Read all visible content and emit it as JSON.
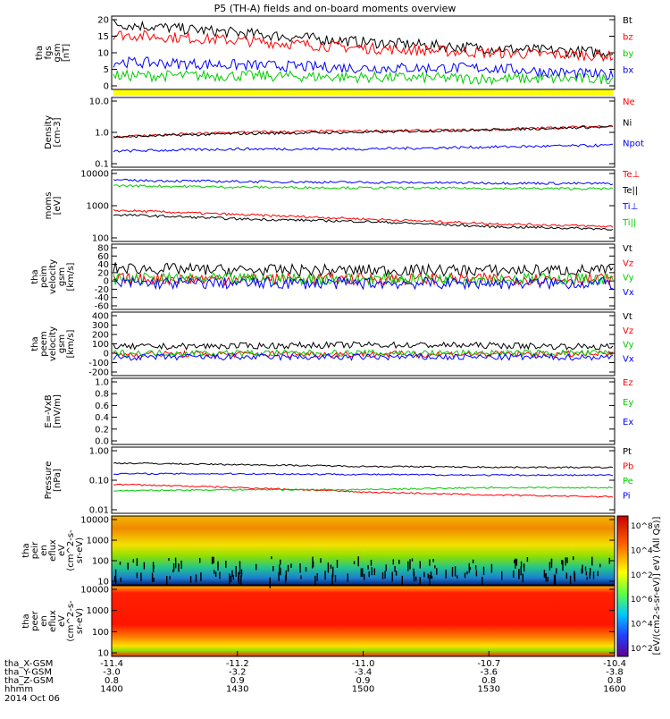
{
  "title": "P5 (TH-A) fields and on-board moments overview",
  "colors": {
    "black": "#000000",
    "red": "#ff0000",
    "green": "#00cc00",
    "blue": "#0000ff",
    "yellow": "#ffff00"
  },
  "panels": [
    {
      "id": "fgs",
      "ylabel": [
        "tha",
        "fgs",
        "gsm",
        "[nT]"
      ],
      "scale": "linear",
      "ylim": [
        -2,
        22
      ],
      "yticks": [
        "20",
        "15",
        "10",
        "5",
        "0"
      ],
      "legend": [
        {
          "label": "Bt",
          "color": "black"
        },
        {
          "label": "bz",
          "color": "red"
        },
        {
          "label": "by",
          "color": "green"
        },
        {
          "label": "bx",
          "color": "blue"
        }
      ]
    },
    {
      "id": "density",
      "ylabel": [
        "Density",
        "[cm-3]"
      ],
      "scale": "log",
      "ylim": [
        0.1,
        12
      ],
      "yticks": [
        "10.0",
        "1.0",
        "0.1"
      ],
      "legend": [
        {
          "label": "Ne",
          "color": "red"
        },
        {
          "label": "Ni",
          "color": "black"
        },
        {
          "label": "Npot",
          "color": "blue"
        }
      ]
    },
    {
      "id": "temperature",
      "ylabel": [
        "moms",
        "[eV]"
      ],
      "scale": "log",
      "ylim": [
        100,
        12000
      ],
      "yticks": [
        "10000",
        "1000",
        "100"
      ],
      "legend": [
        {
          "label": "Te⊥",
          "color": "red"
        },
        {
          "label": "Te||",
          "color": "black"
        },
        {
          "label": "Ti⊥",
          "color": "blue"
        },
        {
          "label": "Ti||",
          "color": "green"
        }
      ]
    },
    {
      "id": "peim_velocity",
      "ylabel": [
        "tha",
        "peim",
        "velocity",
        "gsm",
        "[km/s]"
      ],
      "scale": "linear",
      "ylim": [
        -65,
        85
      ],
      "yticks": [
        "80",
        "60",
        "40",
        "20",
        "0",
        "-20",
        "-40",
        "-60"
      ],
      "legend": [
        {
          "label": "Vt",
          "color": "black"
        },
        {
          "label": "Vz",
          "color": "red"
        },
        {
          "label": "Vy",
          "color": "green"
        },
        {
          "label": "Vx",
          "color": "blue"
        }
      ]
    },
    {
      "id": "peem_velocity",
      "ylabel": [
        "tha",
        "peem",
        "velocity",
        "gsm",
        "[km/s]"
      ],
      "scale": "linear",
      "ylim": [
        -210,
        410
      ],
      "yticks": [
        "400",
        "300",
        "200",
        "100",
        "0",
        "-100",
        "-200"
      ],
      "legend": [
        {
          "label": "Vt",
          "color": "black"
        },
        {
          "label": "Vz",
          "color": "red"
        },
        {
          "label": "Vy",
          "color": "green"
        },
        {
          "label": "Vx",
          "color": "blue"
        }
      ]
    },
    {
      "id": "efield",
      "ylabel": [
        "E=-VxB",
        "[mV/m]"
      ],
      "scale": "linear",
      "ylim": [
        0,
        1
      ],
      "yticks": [
        "1.0",
        "0.8",
        "0.6",
        "0.4",
        "0.2",
        "0.0"
      ],
      "legend": [
        {
          "label": "Ez",
          "color": "red"
        },
        {
          "label": "Ey",
          "color": "green"
        },
        {
          "label": "Ex",
          "color": "blue"
        }
      ]
    },
    {
      "id": "pressure",
      "ylabel": [
        "Pressure",
        "[nPa]"
      ],
      "scale": "log",
      "ylim": [
        0.01,
        1.5
      ],
      "yticks": [
        "1.00",
        "0.10",
        "0.01"
      ],
      "legend": [
        {
          "label": "Pt",
          "color": "black"
        },
        {
          "label": "Pb",
          "color": "red"
        },
        {
          "label": "Pe",
          "color": "green"
        },
        {
          "label": "Pi",
          "color": "blue"
        }
      ]
    },
    {
      "id": "peir_spec",
      "ylabel": [
        "tha",
        "peir",
        "en",
        "eflux",
        "eV",
        "(cm^2-s-",
        "sr-eV)"
      ],
      "scale": "log",
      "yticks": [
        "10000",
        "1000",
        "100",
        "10"
      ]
    },
    {
      "id": "peer_spec",
      "ylabel": [
        "tha",
        "peer",
        "en",
        "eflux",
        "eV",
        "(cm^2-s-",
        "sr-eV)"
      ],
      "scale": "log",
      "yticks": [
        "10000",
        "1000",
        "100",
        "10"
      ]
    }
  ],
  "colorbar": {
    "label": "[eV/(cm2-s-sr-eV)] eV) (All Qs)]",
    "ticks": [
      "10^8",
      "10^4",
      "10^2",
      "10^6",
      "10^4",
      "10^2"
    ]
  },
  "x_axis": {
    "rows": [
      {
        "label": "tha_X-GSM",
        "values": [
          "-11.4",
          "-11.2",
          "-11.0",
          "-10.7",
          "-10.4"
        ]
      },
      {
        "label": "tha_Y-GSM",
        "values": [
          "-3.0",
          "-3.2",
          "-3.4",
          "-3.6",
          "-3.8"
        ]
      },
      {
        "label": "tha_Z-GSM",
        "values": [
          "0.8",
          "0.9",
          "0.9",
          "0.8",
          "0.8"
        ]
      },
      {
        "label": "hhmm",
        "values": [
          "1400",
          "1430",
          "1500",
          "1530",
          "1600"
        ]
      }
    ],
    "date": "2014 Oct 06"
  },
  "chart_data": {
    "type": "line",
    "title": "P5 (TH-A) fields and on-board moments overview",
    "x": [
      "1400",
      "1430",
      "1500",
      "1530",
      "1600"
    ],
    "xlabel": "hhmm",
    "panels": [
      {
        "name": "tha fgs gsm [nT]",
        "ylim": [
          -2,
          22
        ],
        "series": [
          {
            "name": "Bt",
            "values": [
              19.5,
              16.5,
              13.5,
              11.5,
              10.0
            ]
          },
          {
            "name": "bz",
            "values": [
              16.0,
              14.0,
              11.5,
              10.0,
              9.0
            ]
          },
          {
            "name": "by",
            "values": [
              2.5,
              2.5,
              2.0,
              1.5,
              1.5
            ]
          },
          {
            "name": "bx",
            "values": [
              7.0,
              6.0,
              5.0,
              5.0,
              2.5
            ]
          }
        ]
      },
      {
        "name": "Density [cm-3]",
        "scale": "log",
        "ylim": [
          0.1,
          12
        ],
        "series": [
          {
            "name": "Ne",
            "values": [
              0.8,
              1.1,
              1.2,
              1.3,
              1.7
            ]
          },
          {
            "name": "Ni",
            "values": [
              0.8,
              1.0,
              1.1,
              1.3,
              1.6
            ]
          },
          {
            "name": "Npot",
            "values": [
              0.3,
              0.35,
              0.35,
              0.4,
              0.45
            ]
          }
        ]
      },
      {
        "name": "moms [eV]",
        "scale": "log",
        "ylim": [
          100,
          12000
        ],
        "series": [
          {
            "name": "Te⊥",
            "values": [
              800,
              600,
              450,
              330,
              270
            ]
          },
          {
            "name": "Te||",
            "values": [
              600,
              450,
              380,
              270,
              230
            ]
          },
          {
            "name": "Ti⊥",
            "values": [
              6000,
              5500,
              5200,
              5000,
              4800
            ]
          },
          {
            "name": "Ti||",
            "values": [
              4200,
              3800,
              3600,
              3500,
              3400
            ]
          }
        ]
      },
      {
        "name": "tha peim velocity gsm [km/s]",
        "ylim": [
          -65,
          85
        ],
        "series": [
          {
            "name": "Vt",
            "values": [
              30,
              25,
              25,
              25,
              25
            ]
          },
          {
            "name": "Vz",
            "values": [
              5,
              5,
              5,
              5,
              5
            ]
          },
          {
            "name": "Vy",
            "values": [
              5,
              5,
              5,
              5,
              5
            ]
          },
          {
            "name": "Vx",
            "values": [
              -5,
              -5,
              -5,
              -5,
              -5
            ]
          }
        ]
      },
      {
        "name": "tha peem velocity gsm [km/s]",
        "ylim": [
          -210,
          410
        ],
        "series": [
          {
            "name": "Vt",
            "values": [
              70,
              80,
              90,
              85,
              70
            ]
          },
          {
            "name": "Vz",
            "values": [
              0,
              0,
              0,
              0,
              0
            ]
          },
          {
            "name": "Vy",
            "values": [
              10,
              10,
              10,
              10,
              10
            ]
          },
          {
            "name": "Vx",
            "values": [
              -30,
              -30,
              -30,
              -30,
              -30
            ]
          }
        ]
      },
      {
        "name": "Pressure [nPa]",
        "scale": "log",
        "ylim": [
          0.01,
          1.5
        ],
        "series": [
          {
            "name": "Pt",
            "values": [
              0.45,
              0.4,
              0.35,
              0.33,
              0.32
            ]
          },
          {
            "name": "Pb",
            "values": [
              0.09,
              0.07,
              0.05,
              0.04,
              0.035
            ]
          },
          {
            "name": "Pe",
            "values": [
              0.055,
              0.06,
              0.06,
              0.07,
              0.07
            ]
          },
          {
            "name": "Pi",
            "values": [
              0.2,
              0.2,
              0.19,
              0.18,
              0.18
            ]
          }
        ]
      }
    ]
  }
}
